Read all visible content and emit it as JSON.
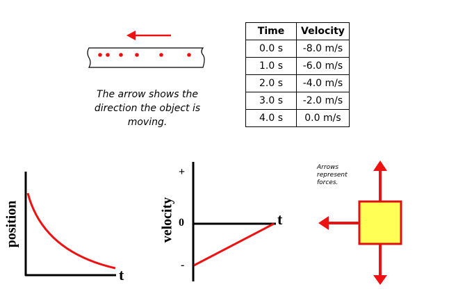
{
  "motion_caption": "The arrow shows the direction the object is moving.",
  "table": {
    "headers": [
      "Time",
      "Velocity"
    ],
    "rows": [
      [
        "0.0 s",
        "-8.0 m/s"
      ],
      [
        "1.0 s",
        "-6.0 m/s"
      ],
      [
        "2.0 s",
        "-4.0 m/s"
      ],
      [
        "3.0 s",
        "-2.0 m/s"
      ],
      [
        "4.0 s",
        "0.0 m/s"
      ]
    ]
  },
  "position_graph": {
    "ylabel": "position",
    "xlabel": "t"
  },
  "velocity_graph": {
    "ylabel": "velocity",
    "xlabel": "t",
    "plus_label": "+",
    "zero_label": "0",
    "minus_label": "-"
  },
  "force_note": "Arrows represent forces.",
  "colors": {
    "red": "#ee1111",
    "box_fill": "#ffff55",
    "box_stroke": "#dd1111"
  }
}
